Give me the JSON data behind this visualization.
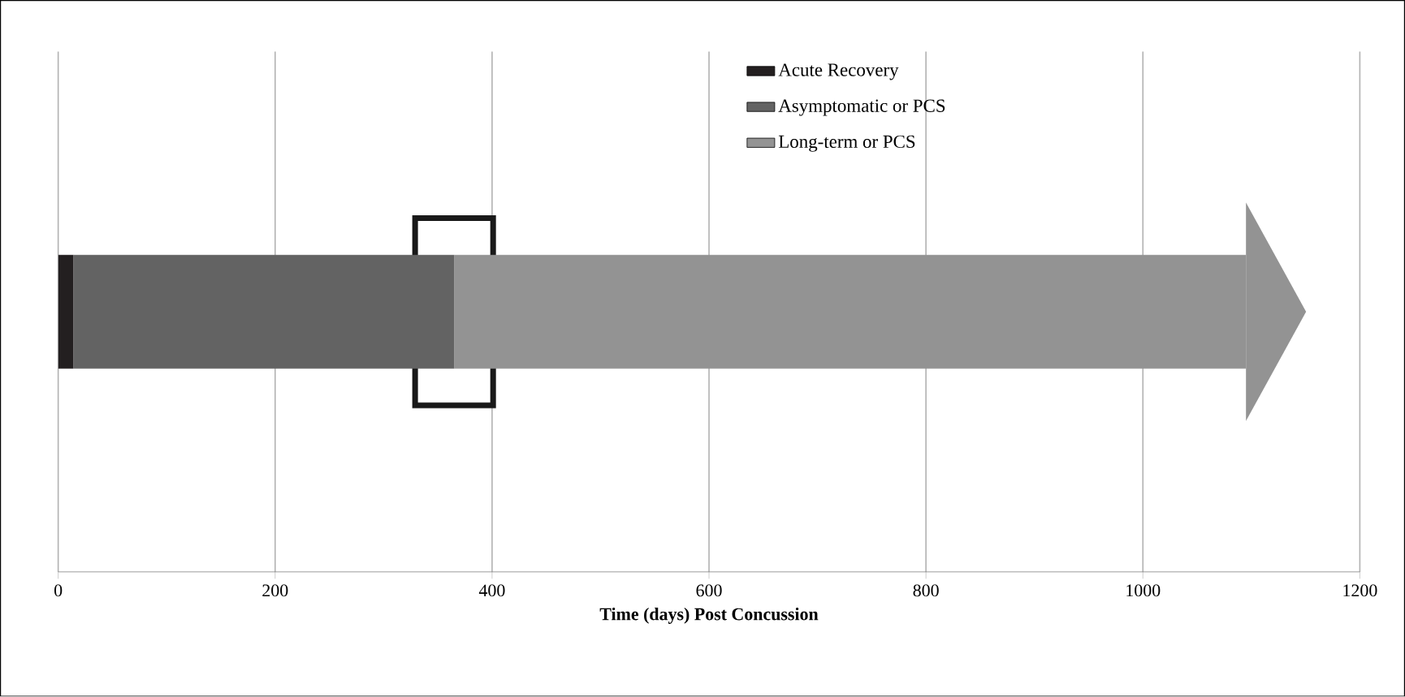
{
  "chart_data": {
    "type": "bar",
    "orientation": "horizontal",
    "stacked": true,
    "categories": [
      null
    ],
    "series": [
      {
        "name": "Acute Recovery",
        "color": "#231f20",
        "values": [
          14
        ]
      },
      {
        "name": "Asymptomatic or PCS",
        "color": "#636363",
        "values": [
          351
        ]
      },
      {
        "name": "Long-term or PCS",
        "color": "#939393",
        "values": [
          730
        ]
      }
    ],
    "xlabel": "Time (days) Post Concussion",
    "xlim": [
      0,
      1200
    ],
    "xticks": [
      0,
      200,
      400,
      600,
      800,
      1000,
      1200
    ],
    "grid": "x",
    "legend": "top right",
    "tick_labels": "x"
  }
}
